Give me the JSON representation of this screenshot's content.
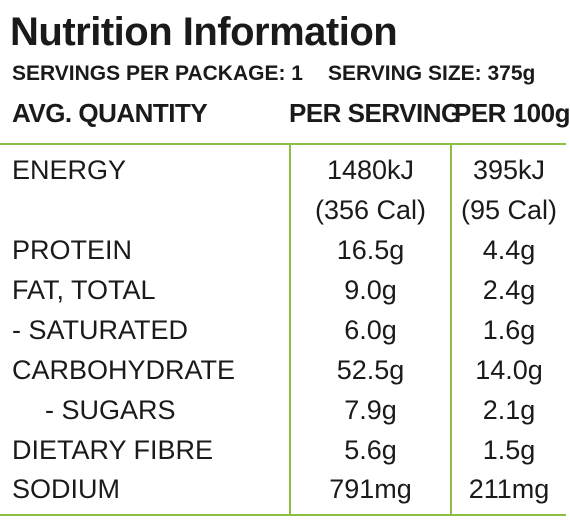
{
  "title": "Nutrition Information",
  "servings_per_package": "SERVINGS PER PACKAGE: 1",
  "serving_size": "SERVING SIZE: 375g",
  "headers": {
    "quantity": "AVG. QUANTITY",
    "per_serving": "PER SERVING",
    "per_100g": "PER 100g"
  },
  "colors": {
    "rule_green": "#8cbf3f",
    "text": "#1a1a1a"
  },
  "rows": [
    {
      "name": "ENERGY",
      "per_serving": "1480kJ",
      "per_100g": "395kJ"
    },
    {
      "name": "",
      "per_serving": "(356 Cal)",
      "per_100g": "(95 Cal)"
    },
    {
      "name": "PROTEIN",
      "per_serving": "16.5g",
      "per_100g": "4.4g"
    },
    {
      "name": "FAT, TOTAL",
      "per_serving": "9.0g",
      "per_100g": "2.4g"
    },
    {
      "name": "- SATURATED",
      "per_serving": "6.0g",
      "per_100g": "1.6g"
    },
    {
      "name": "CARBOHYDRATE",
      "per_serving": "52.5g",
      "per_100g": "14.0g"
    },
    {
      "name": "- SUGARS",
      "per_serving": "7.9g",
      "per_100g": "2.1g"
    },
    {
      "name": "DIETARY FIBRE",
      "per_serving": "5.6g",
      "per_100g": "1.5g"
    },
    {
      "name": "SODIUM",
      "per_serving": "791mg",
      "per_100g": "211mg"
    }
  ]
}
